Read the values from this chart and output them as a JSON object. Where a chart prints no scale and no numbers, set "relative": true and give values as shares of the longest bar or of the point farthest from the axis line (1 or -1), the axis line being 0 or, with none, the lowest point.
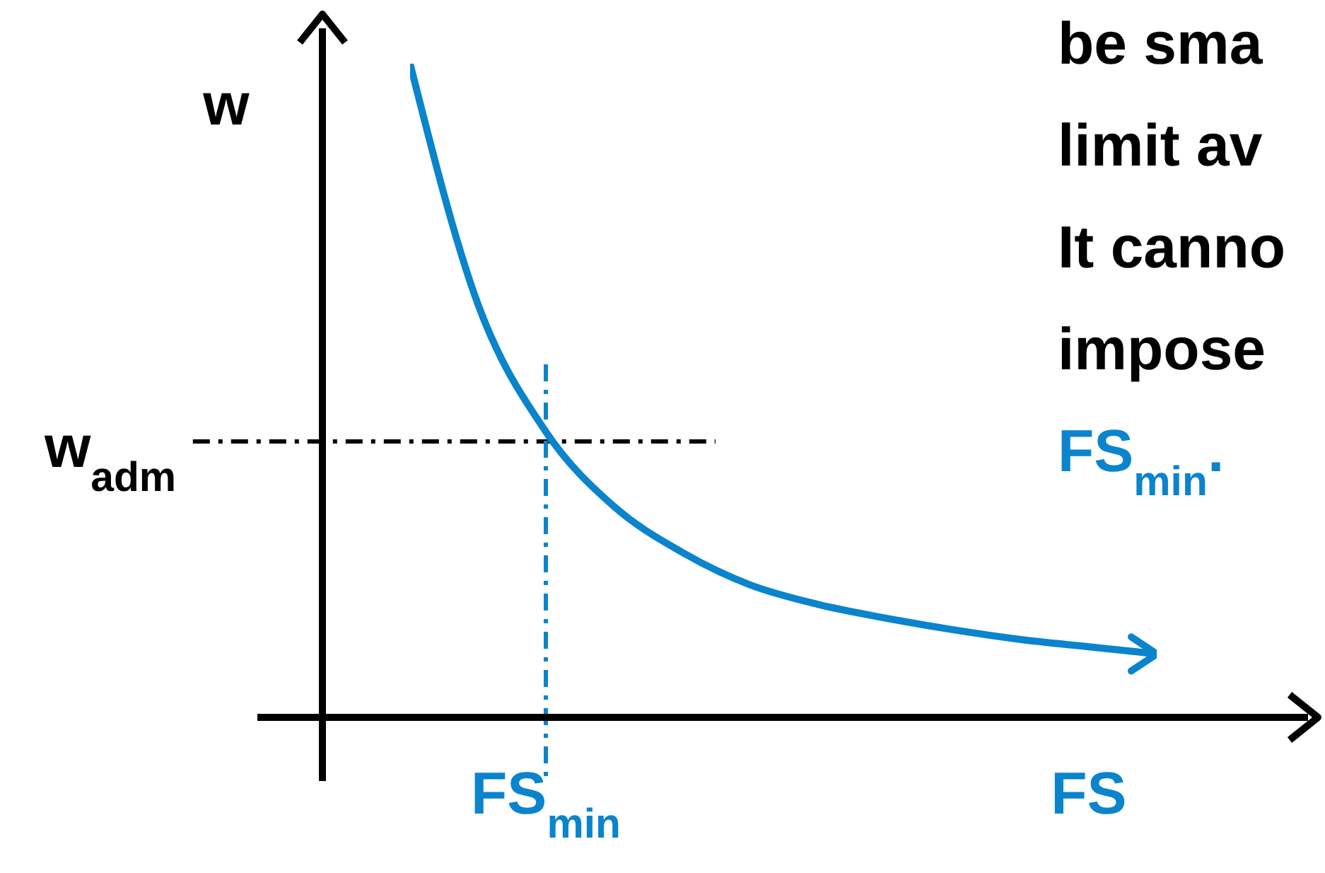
{
  "chart_data": {
    "type": "line",
    "relative": true,
    "ylabel": "w",
    "categories": [
      null,
      null,
      "FS$_{min}$",
      null,
      null,
      null,
      null,
      null,
      null,
      null,
      "FS",
      null
    ],
    "series": [
      {
        "color": "#0a84cc",
        "values": [
          1,
          0.632,
          0.437,
          0.323,
          0.253,
          0.203,
          0.173,
          0.152,
          0.134,
          0.119,
          0.108,
          0.097
        ]
      }
    ],
    "ref_lines": [
      {
        "axis": "y",
        "value": 0.422,
        "label": "w$_{adm}$",
        "color": "#000000",
        "line_style": "dashdot"
      },
      {
        "axis": "x",
        "value": "FS$_{min}$",
        "color": "#0a84cc",
        "line_style": "dashdot"
      }
    ],
    "line_style": "solid",
    "annotations": [
      "be sma",
      "limit av",
      "It canno",
      "impose",
      "FS$_{min}$."
    ]
  }
}
